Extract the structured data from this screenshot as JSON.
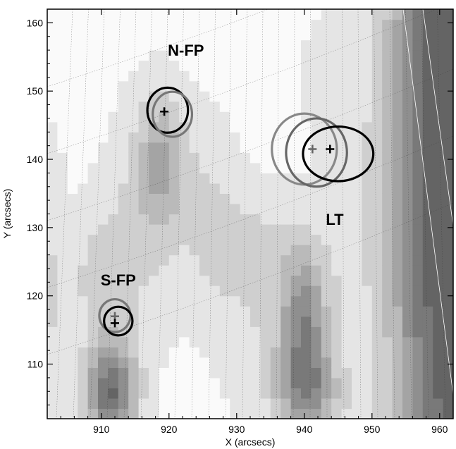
{
  "axes": {
    "x": {
      "label": "X (arcsecs)",
      "range": [
        902,
        962
      ],
      "ticks": [
        910,
        920,
        930,
        940,
        950,
        960
      ]
    },
    "y": {
      "label": "Y (arcsecs)",
      "range": [
        102,
        162
      ],
      "ticks": [
        110,
        120,
        130,
        140,
        150,
        160
      ]
    }
  },
  "regions": [
    {
      "id": "nfp",
      "label": "N-FP",
      "label_pos": [
        922.5,
        155.2
      ]
    },
    {
      "id": "lt",
      "label": "LT",
      "label_pos": [
        944.5,
        130.4
      ]
    },
    {
      "id": "sfp",
      "label": "S-FP",
      "label_pos": [
        912.5,
        121.5
      ]
    }
  ],
  "sources": [
    {
      "id": "nfp-black-contour",
      "cx": 919.8,
      "cy": 147.2,
      "rx": 3.0,
      "ry": 3.3,
      "color": "#000000"
    },
    {
      "id": "nfp-gray-contour",
      "cx": 920.5,
      "cy": 146.6,
      "rx": 2.9,
      "ry": 3.3,
      "color": "#777777"
    },
    {
      "id": "lt-gray-contour-outer",
      "cx": 940.0,
      "cy": 141.5,
      "rx": 4.8,
      "ry": 5.2,
      "color": "#888888"
    },
    {
      "id": "lt-gray-contour-inner",
      "cx": 941.8,
      "cy": 141.0,
      "rx": 4.5,
      "ry": 5.0,
      "color": "#666666"
    },
    {
      "id": "lt-black-contour",
      "cx": 945.0,
      "cy": 140.8,
      "rx": 5.2,
      "ry": 4.0,
      "color": "#000000"
    },
    {
      "id": "sfp-gray-contour",
      "cx": 912.0,
      "cy": 117.1,
      "rx": 2.3,
      "ry": 2.4,
      "color": "#777777"
    },
    {
      "id": "sfp-black-contour",
      "cx": 912.5,
      "cy": 116.3,
      "rx": 2.1,
      "ry": 2.1,
      "color": "#000000"
    }
  ],
  "centroids": [
    {
      "id": "nfp-centroid-black",
      "x": 919.3,
      "y": 147.0,
      "color": "#000000"
    },
    {
      "id": "lt-centroid-gray",
      "x": 941.2,
      "y": 141.5,
      "color": "#666666"
    },
    {
      "id": "lt-centroid-black",
      "x": 943.8,
      "y": 141.5,
      "color": "#000000"
    },
    {
      "id": "sfp-centroid-gray",
      "x": 912.0,
      "y": 117.0,
      "color": "#666666"
    },
    {
      "id": "sfp-centroid-black",
      "x": 912.0,
      "y": 116.0,
      "color": "#000000"
    }
  ]
}
